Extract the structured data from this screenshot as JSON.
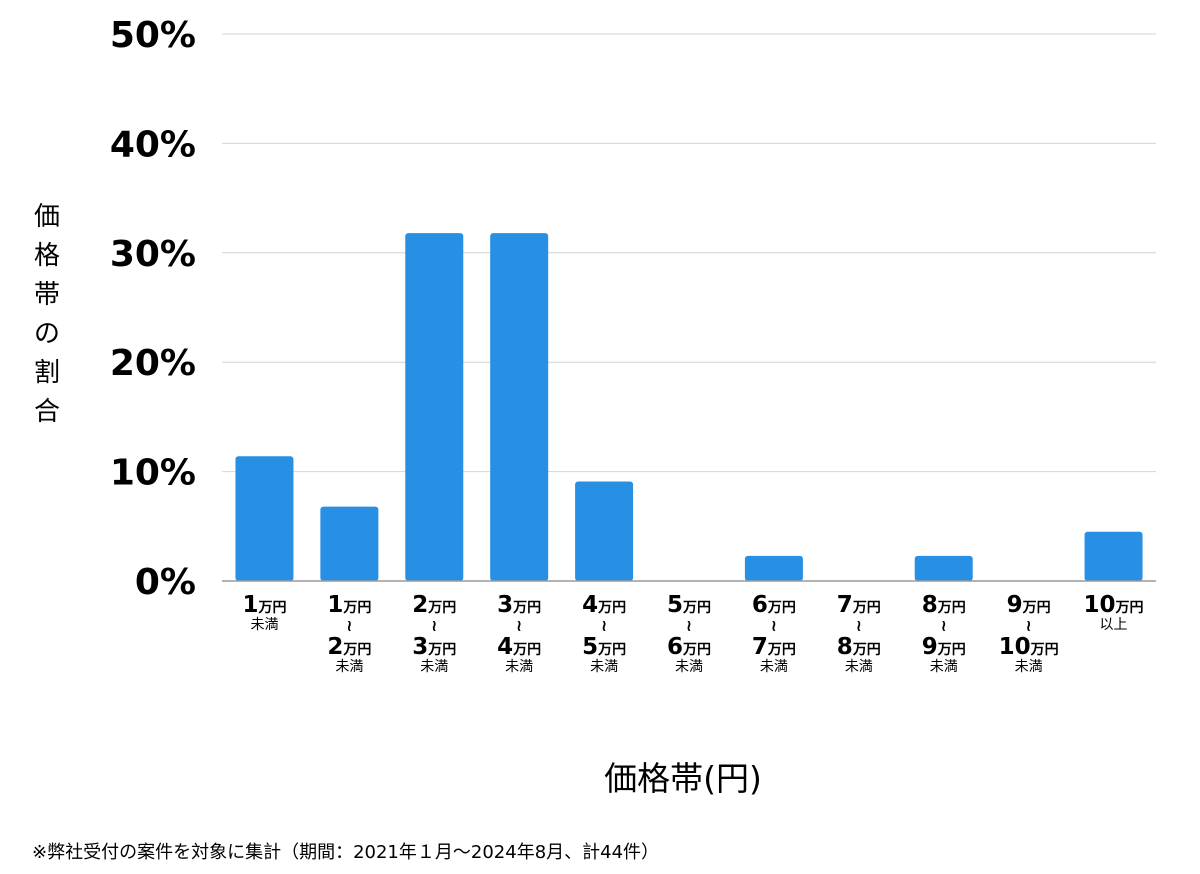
{
  "chart_data": {
    "type": "bar",
    "ylabel": "価格帯の割合",
    "xlabel": "価格帯(円)",
    "ylim": [
      0,
      50
    ],
    "yticks": [
      "0%",
      "10%",
      "20%",
      "30%",
      "40%",
      "50%"
    ],
    "grid": true,
    "categories": [
      {
        "from": "1",
        "from_unit": "万円",
        "to": "",
        "to_unit": "",
        "suffix": "未満"
      },
      {
        "from": "1",
        "from_unit": "万円",
        "to": "2",
        "to_unit": "万円",
        "suffix": "未満"
      },
      {
        "from": "2",
        "from_unit": "万円",
        "to": "3",
        "to_unit": "万円",
        "suffix": "未満"
      },
      {
        "from": "3",
        "from_unit": "万円",
        "to": "4",
        "to_unit": "万円",
        "suffix": "未満"
      },
      {
        "from": "4",
        "from_unit": "万円",
        "to": "5",
        "to_unit": "万円",
        "suffix": "未満"
      },
      {
        "from": "5",
        "from_unit": "万円",
        "to": "6",
        "to_unit": "万円",
        "suffix": "未満"
      },
      {
        "from": "6",
        "from_unit": "万円",
        "to": "7",
        "to_unit": "万円",
        "suffix": "未満"
      },
      {
        "from": "7",
        "from_unit": "万円",
        "to": "8",
        "to_unit": "万円",
        "suffix": "未満"
      },
      {
        "from": "8",
        "from_unit": "万円",
        "to": "9",
        "to_unit": "万円",
        "suffix": "未満"
      },
      {
        "from": "9",
        "from_unit": "万円",
        "to": "10",
        "to_unit": "万円",
        "suffix": "未満"
      },
      {
        "from": "10",
        "from_unit": "万円",
        "to": "",
        "to_unit": "",
        "suffix": "以上"
      }
    ],
    "range_separator": "≀",
    "values": [
      11.4,
      6.8,
      31.8,
      31.8,
      9.1,
      0,
      2.3,
      0,
      2.3,
      0,
      4.5
    ],
    "bar_color": "#2790e5"
  },
  "footnote": "※弊社受付の案件を対象に集計（期間：2021年１月〜2024年8月、計44件）"
}
